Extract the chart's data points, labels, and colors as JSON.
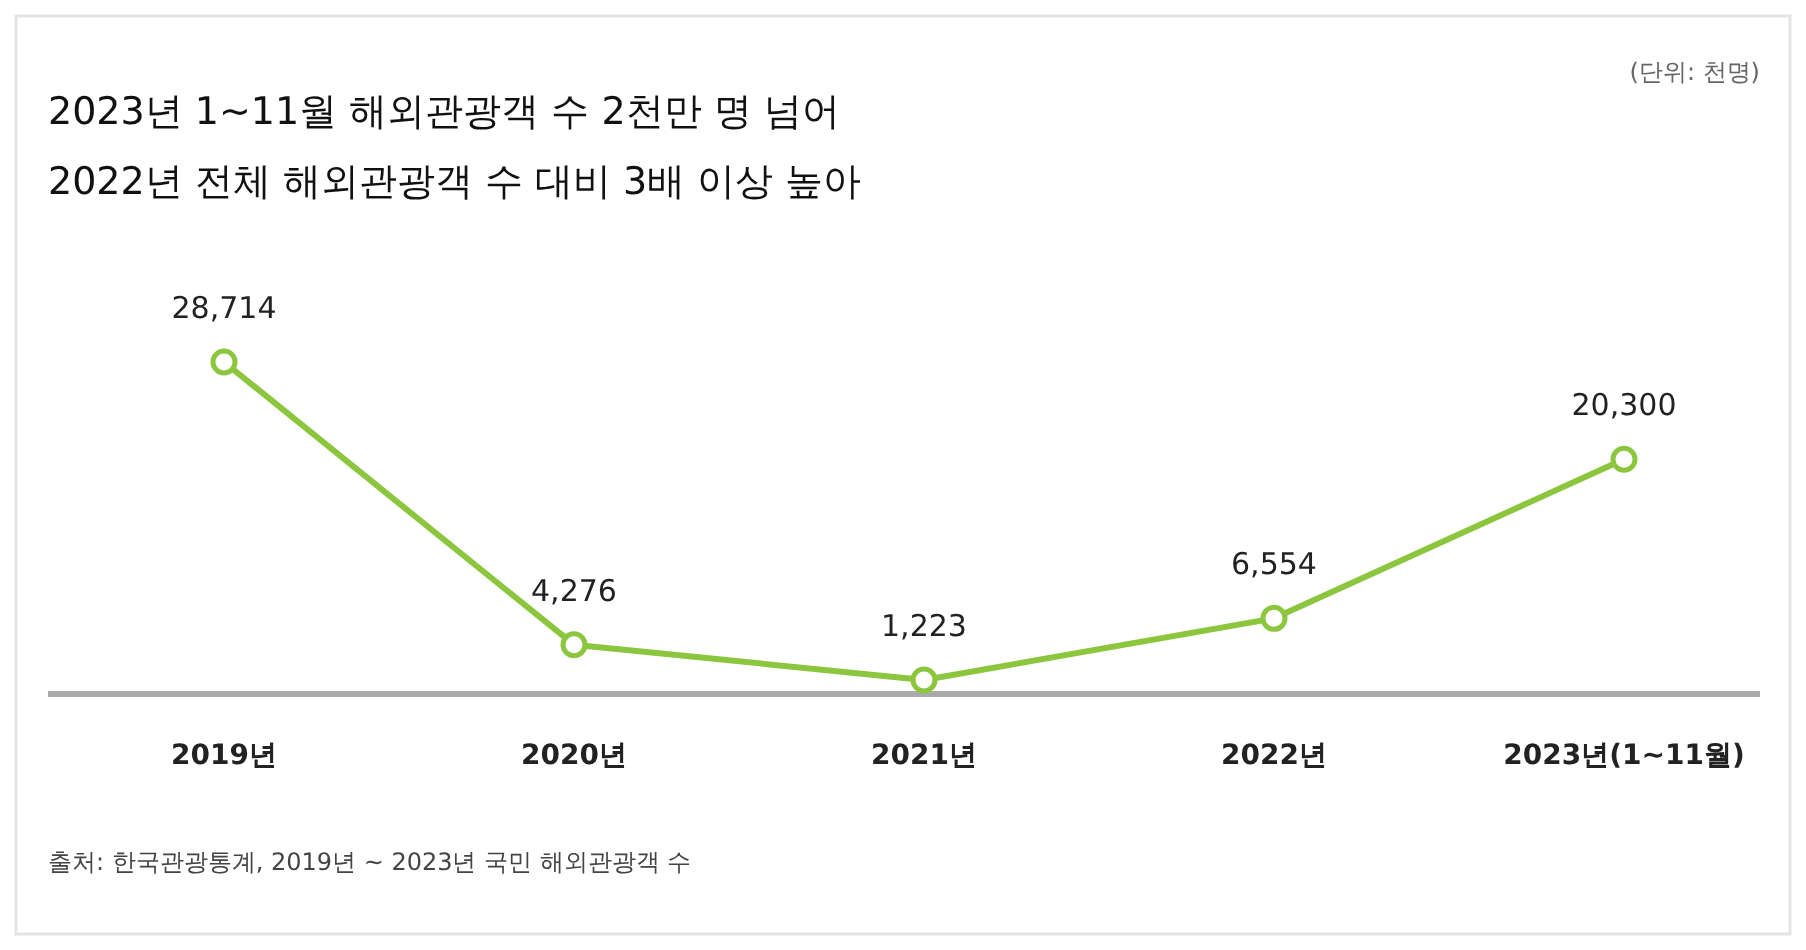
{
  "chart_data": {
    "type": "line",
    "title": "2023년 1~11월 해외관광객 수 2천만 명 넘어",
    "subtitle": "2022년 전체 해외관광객 수 대비 3배 이상 높아",
    "annotations": [
      "(단위: 천명)",
      "출처: 한국관광통계, 2019년 ~ 2023년 국민 해외관광객 수"
    ],
    "categories": [
      "2019년",
      "2020년",
      "2021년",
      "2022년",
      "2023년(1~11월)"
    ],
    "values": [
      28714,
      4276,
      1223,
      6554,
      20300
    ],
    "value_labels": [
      "28,714",
      "4,276",
      "1,223",
      "6,554",
      "20,300"
    ],
    "color": "#8cc63f",
    "marker": "circle",
    "line_style": "solid"
  }
}
